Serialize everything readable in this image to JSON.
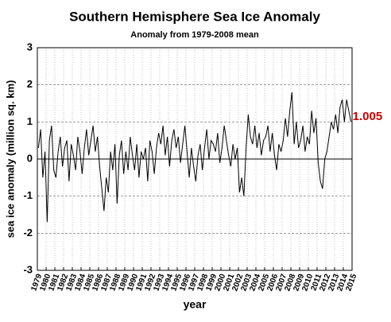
{
  "chart_data": {
    "type": "line",
    "title": "Southern Hemisphere Sea Ice Anomaly",
    "subtitle": "Anomaly from 1979-2008 mean",
    "x_label": "year",
    "y_label": "sea ice anomaly (million sq. km)",
    "annotation": "1.005",
    "color": "#000000",
    "annotation_color": "#cc0000",
    "grid": true,
    "xlim": [
      1979,
      2015
    ],
    "ylim": [
      -3,
      3
    ],
    "xticks": [
      1979,
      1980,
      1981,
      1982,
      1983,
      1984,
      1985,
      1986,
      1987,
      1988,
      1989,
      1990,
      1991,
      1992,
      1993,
      1994,
      1995,
      1996,
      1997,
      1998,
      1999,
      2000,
      2001,
      2002,
      2003,
      2004,
      2005,
      2006,
      2007,
      2008,
      2009,
      2010,
      2011,
      2012,
      2013,
      2014,
      2015
    ],
    "yticks": [
      -3,
      -2,
      -1,
      0,
      1,
      2,
      3
    ],
    "x": [
      1979.125,
      1979.375,
      1979.625,
      1979.875,
      1980.125,
      1980.375,
      1980.625,
      1980.875,
      1981.125,
      1981.375,
      1981.625,
      1981.875,
      1982.125,
      1982.375,
      1982.625,
      1982.875,
      1983.125,
      1983.375,
      1983.625,
      1983.875,
      1984.125,
      1984.375,
      1984.625,
      1984.875,
      1985.125,
      1985.375,
      1985.625,
      1985.875,
      1986.125,
      1986.375,
      1986.625,
      1986.875,
      1987.125,
      1987.375,
      1987.625,
      1987.875,
      1988.125,
      1988.375,
      1988.625,
      1988.875,
      1989.125,
      1989.375,
      1989.625,
      1989.875,
      1990.125,
      1990.375,
      1990.625,
      1990.875,
      1991.125,
      1991.375,
      1991.625,
      1991.875,
      1992.125,
      1992.375,
      1992.625,
      1992.875,
      1993.125,
      1993.375,
      1993.625,
      1993.875,
      1994.125,
      1994.375,
      1994.625,
      1994.875,
      1995.125,
      1995.375,
      1995.625,
      1995.875,
      1996.125,
      1996.375,
      1996.625,
      1996.875,
      1997.125,
      1997.375,
      1997.625,
      1997.875,
      1998.125,
      1998.375,
      1998.625,
      1998.875,
      1999.125,
      1999.375,
      1999.625,
      1999.875,
      2000.125,
      2000.375,
      2000.625,
      2000.875,
      2001.125,
      2001.375,
      2001.625,
      2001.875,
      2002.125,
      2002.375,
      2002.625,
      2002.875,
      2003.125,
      2003.375,
      2003.625,
      2003.875,
      2004.125,
      2004.375,
      2004.625,
      2004.875,
      2005.125,
      2005.375,
      2005.625,
      2005.875,
      2006.125,
      2006.375,
      2006.625,
      2006.875,
      2007.125,
      2007.375,
      2007.625,
      2007.875,
      2008.125,
      2008.375,
      2008.625,
      2008.875,
      2009.125,
      2009.375,
      2009.625,
      2009.875,
      2010.125,
      2010.375,
      2010.625,
      2010.875,
      2011.125,
      2011.375,
      2011.625,
      2011.875,
      2012.125,
      2012.375,
      2012.625,
      2012.875,
      2013.125,
      2013.375,
      2013.625,
      2013.875,
      2014.125,
      2014.375,
      2014.625,
      2014.875
    ],
    "values": [
      0.3,
      0.8,
      -0.5,
      0.2,
      -1.7,
      0.5,
      0.9,
      -0.3,
      -0.5,
      0.2,
      0.6,
      -0.2,
      0.3,
      0.5,
      -0.6,
      0.4,
      0.1,
      -0.3,
      0.6,
      0.2,
      -0.4,
      0.3,
      0.8,
      0.1,
      0.5,
      0.9,
      0.2,
      0.6,
      -0.2,
      -0.8,
      -1.4,
      -0.5,
      -0.9,
      0.2,
      -0.3,
      0.4,
      -1.2,
      0.1,
      0.5,
      -0.4,
      0.2,
      -0.3,
      0.6,
      0.1,
      -0.3,
      0.4,
      -0.5,
      0.2,
      0.0,
      0.3,
      -0.6,
      0.5,
      0.2,
      -0.4,
      0.3,
      0.7,
      0.4,
      0.9,
      0.1,
      0.6,
      -0.2,
      0.5,
      0.8,
      0.3,
      0.6,
      -0.1,
      0.4,
      0.9,
      0.2,
      -0.5,
      0.3,
      -0.2,
      -0.6,
      0.1,
      0.4,
      -0.3,
      0.3,
      0.8,
      0.0,
      0.5,
      0.4,
      0.2,
      0.7,
      -0.1,
      0.3,
      0.9,
      0.5,
      0.1,
      -0.2,
      0.4,
      0.0,
      0.3,
      -0.9,
      -0.5,
      -1.0,
      0.3,
      1.2,
      0.6,
      0.4,
      0.9,
      0.3,
      0.7,
      0.1,
      0.5,
      0.6,
      0.9,
      0.2,
      0.7,
      0.1,
      -0.3,
      0.4,
      0.2,
      0.5,
      1.1,
      0.6,
      1.3,
      1.8,
      0.4,
      1.0,
      0.3,
      0.5,
      0.9,
      0.2,
      0.6,
      0.4,
      1.3,
      0.7,
      1.1,
      -0.1,
      -0.6,
      -0.8,
      0.0,
      0.2,
      0.6,
      1.0,
      0.8,
      1.2,
      0.7,
      1.4,
      1.6,
      1.0,
      1.6,
      1.3,
      1.005
    ]
  }
}
